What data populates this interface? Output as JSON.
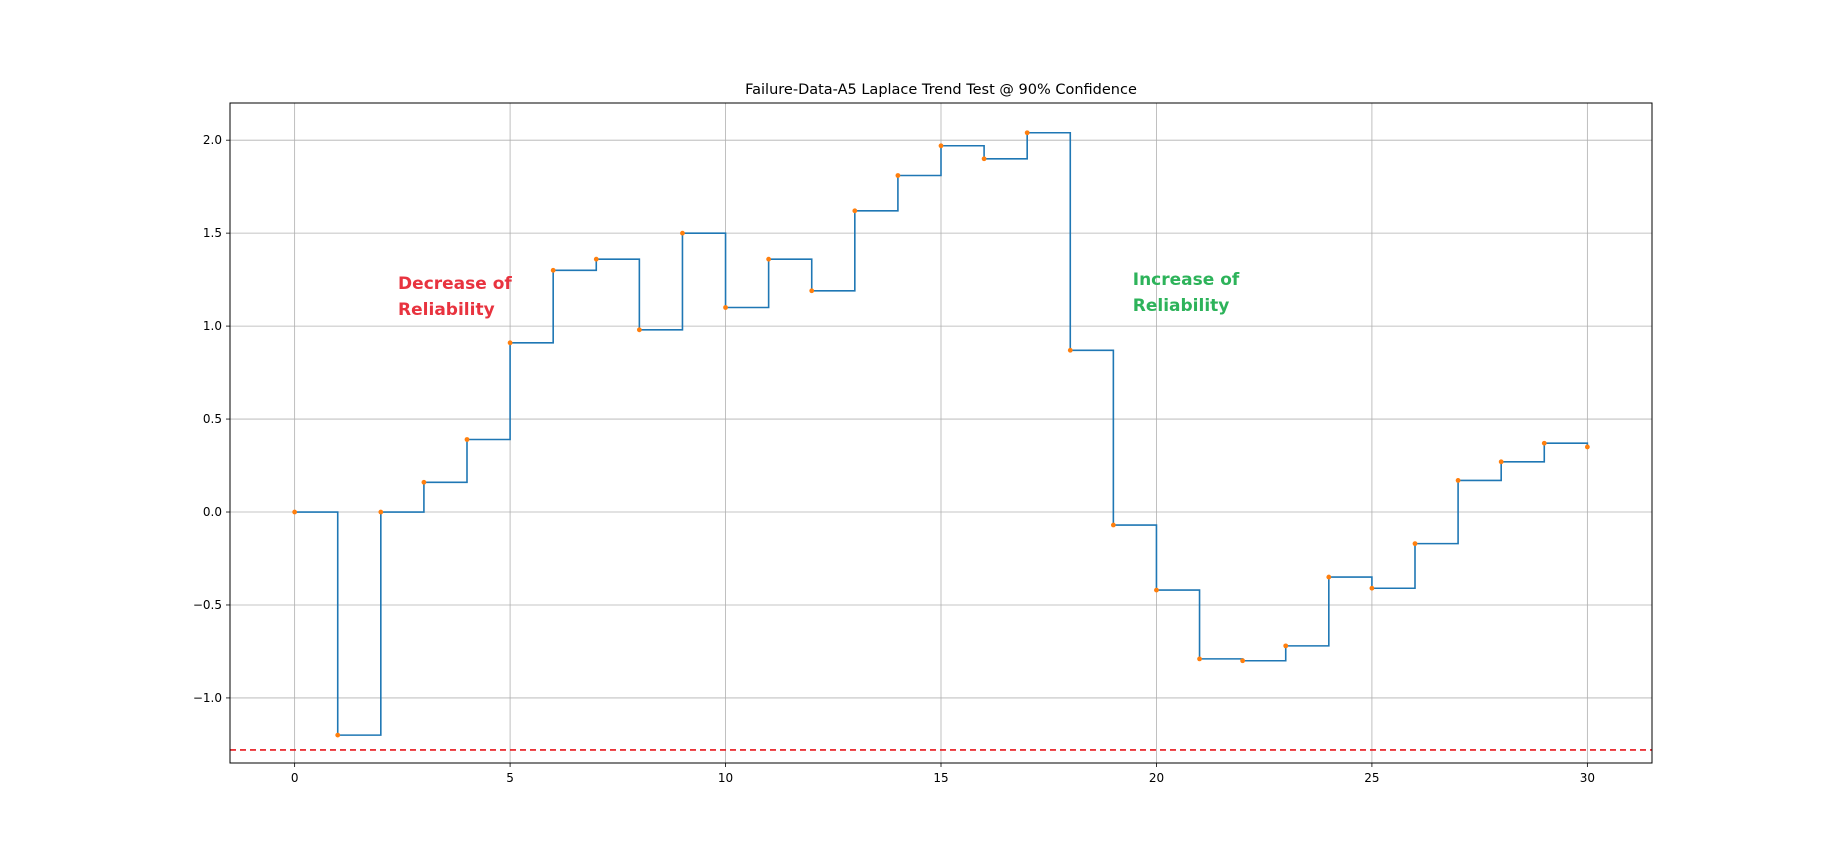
{
  "chart_data": {
    "type": "line",
    "title": "Failure-Data-A5 Laplace Trend Test @ 90% Confidence",
    "xlabel": "",
    "ylabel": "",
    "xlim": [
      -1.5,
      31.5
    ],
    "ylim": [
      -1.35,
      2.2
    ],
    "grid": true,
    "step": "post",
    "x_ticks": [
      0,
      5,
      10,
      15,
      20,
      25,
      30
    ],
    "x_tick_labels": [
      "0",
      "5",
      "10",
      "15",
      "20",
      "25",
      "30"
    ],
    "y_ticks": [
      -1.0,
      -0.5,
      0.0,
      0.5,
      1.0,
      1.5,
      2.0
    ],
    "y_tick_labels": [
      "−1.0",
      "−0.5",
      "0.0",
      "0.5",
      "1.0",
      "1.5",
      "2.0"
    ],
    "x": [
      0,
      1,
      2,
      3,
      4,
      5,
      6,
      7,
      8,
      9,
      10,
      11,
      12,
      13,
      14,
      15,
      16,
      17,
      18,
      19,
      20,
      21,
      22,
      23,
      24,
      25,
      26,
      27,
      28,
      29,
      30
    ],
    "values": [
      0.0,
      -1.2,
      0.0,
      0.16,
      0.39,
      0.91,
      1.3,
      1.36,
      0.98,
      1.5,
      1.1,
      1.36,
      1.19,
      1.62,
      1.81,
      1.97,
      1.9,
      2.04,
      0.87,
      -0.07,
      -0.42,
      -0.79,
      -0.8,
      -0.72,
      -0.35,
      -0.41,
      -0.17,
      0.17,
      0.27,
      0.37,
      0.35
    ],
    "threshold": -1.28,
    "colors": {
      "step": "#1f77b4",
      "marker": "#ff7f0e",
      "threshold": "#e8161b",
      "decrease": "#e8333f",
      "increase": "#2db35a"
    },
    "annotations": [
      {
        "lines": [
          "Decrease of",
          "Reliability"
        ],
        "at": [
          2.4,
          1.2
        ],
        "color": "#e8333f"
      },
      {
        "lines": [
          "Increase of",
          "Reliability"
        ],
        "at": [
          19.45,
          1.22
        ],
        "color": "#2db35a"
      }
    ]
  }
}
